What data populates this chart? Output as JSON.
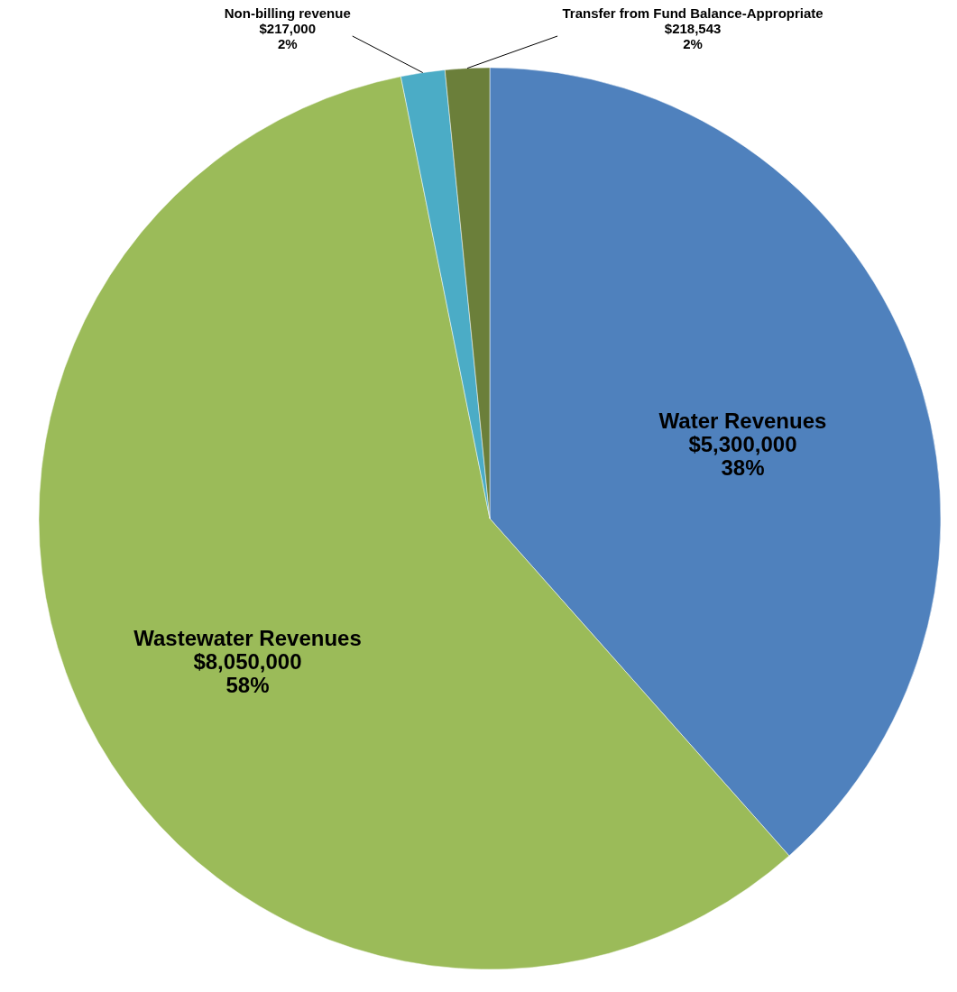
{
  "chart_data": {
    "type": "pie",
    "categories": [
      "Water Revenues",
      "Wastewater Revenues",
      "Non-billing revenue",
      "Transfer from Fund Balance-Appropriate"
    ],
    "values": [
      5300000,
      8050000,
      217000,
      218543
    ],
    "colors": [
      "#4f81bd",
      "#9bbb59",
      "#4bacc6",
      "#6b7f3a"
    ],
    "value_labels": [
      "$5,300,000\n38%",
      "$8,050,000\n58%",
      "$217,000\n2%",
      "$218,543\n2%"
    ]
  }
}
